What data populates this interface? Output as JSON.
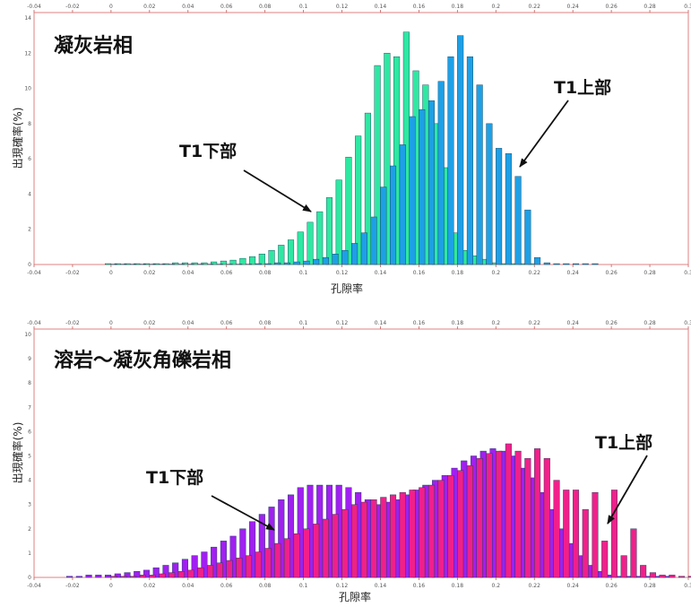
{
  "chart_data": [
    {
      "type": "bar",
      "title": "凝灰岩相",
      "xlabel": "孔隙率",
      "ylabel": "出現確率(%)",
      "xlim": [
        -0.04,
        0.3
      ],
      "ylim": [
        0,
        14
      ],
      "x_ticks": [
        "-0.04",
        "-0.02",
        "0",
        "0.02",
        "0.04",
        "0.06",
        "0.08",
        "0.1",
        "0.12",
        "0.14",
        "0.16",
        "0.18",
        "0.2",
        "0.22",
        "0.24",
        "0.26",
        "0.28",
        "0.3"
      ],
      "y_ticks": [
        "0",
        "2",
        "4",
        "6",
        "8",
        "10",
        "12",
        "14"
      ],
      "grid": false,
      "colors": {
        "T1下部": "#2ee8a2",
        "T1上部": "#1ea0e6",
        "frame": "#e08080"
      },
      "bin_width": 0.005,
      "series": [
        {
          "color": "#2ee8a2",
          "x": [
            0.0,
            0.005,
            0.01,
            0.015,
            0.02,
            0.025,
            0.03,
            0.035,
            0.04,
            0.045,
            0.05,
            0.055,
            0.06,
            0.065,
            0.07,
            0.075,
            0.08,
            0.085,
            0.09,
            0.095,
            0.1,
            0.105,
            0.11,
            0.115,
            0.12,
            0.125,
            0.13,
            0.135,
            0.14,
            0.145,
            0.15,
            0.155,
            0.16,
            0.165,
            0.17,
            0.175,
            0.18,
            0.185,
            0.19,
            0.195,
            0.2,
            0.205,
            0.21,
            0.215,
            0.22
          ],
          "values": [
            0.05,
            0.05,
            0.05,
            0.05,
            0.05,
            0.05,
            0.05,
            0.1,
            0.1,
            0.1,
            0.1,
            0.15,
            0.2,
            0.25,
            0.35,
            0.45,
            0.6,
            0.8,
            1.1,
            1.4,
            1.85,
            2.4,
            3.0,
            3.8,
            4.8,
            6.1,
            7.3,
            8.6,
            11.3,
            12.0,
            11.8,
            13.2,
            11.0,
            10.2,
            8.0,
            5.5,
            1.8,
            0.8,
            0.5,
            0.3,
            0.1,
            0.05,
            0.05,
            0.05,
            0.05
          ]
        },
        {
          "color": "#1ea0e6",
          "x": [
            0.0,
            0.005,
            0.01,
            0.015,
            0.02,
            0.025,
            0.03,
            0.035,
            0.04,
            0.045,
            0.05,
            0.055,
            0.06,
            0.065,
            0.07,
            0.075,
            0.08,
            0.085,
            0.09,
            0.095,
            0.1,
            0.105,
            0.11,
            0.115,
            0.12,
            0.125,
            0.13,
            0.135,
            0.14,
            0.145,
            0.15,
            0.155,
            0.16,
            0.165,
            0.17,
            0.175,
            0.18,
            0.185,
            0.19,
            0.195,
            0.2,
            0.205,
            0.21,
            0.215,
            0.22,
            0.225,
            0.23,
            0.235,
            0.24,
            0.245,
            0.25
          ],
          "values": [
            0.02,
            0.02,
            0.02,
            0.02,
            0.02,
            0.02,
            0.02,
            0.02,
            0.02,
            0.02,
            0.02,
            0.02,
            0.02,
            0.02,
            0.02,
            0.05,
            0.05,
            0.1,
            0.1,
            0.15,
            0.2,
            0.3,
            0.4,
            0.6,
            0.8,
            1.2,
            1.8,
            2.7,
            4.4,
            5.6,
            6.8,
            8.4,
            8.8,
            9.3,
            10.4,
            11.8,
            13.0,
            11.8,
            10.2,
            8.0,
            6.6,
            6.3,
            5.0,
            3.1,
            0.4,
            0.1,
            0.05,
            0.05,
            0.05,
            0.05,
            0.05
          ]
        }
      ],
      "annotations": [
        {
          "text": "T1下部",
          "points_to_x": 0.105,
          "points_to_y": 2.9
        },
        {
          "text": "T1上部",
          "points_to_x": 0.213,
          "points_to_y": 5.8
        }
      ]
    },
    {
      "type": "bar",
      "title": "溶岩～凝灰角礫岩相",
      "xlabel": "孔隙率",
      "ylabel": "出現確率(%)",
      "xlim": [
        -0.04,
        0.3
      ],
      "ylim": [
        0,
        10
      ],
      "x_ticks": [
        "-0.04",
        "-0.02",
        "0",
        "0.02",
        "0.04",
        "0.06",
        "0.08",
        "0.1",
        "0.12",
        "0.14",
        "0.16",
        "0.18",
        "0.2",
        "0.22",
        "0.24",
        "0.26",
        "0.28",
        "0.3"
      ],
      "y_ticks": [
        "0",
        "1",
        "2",
        "3",
        "4",
        "5",
        "6",
        "7",
        "8",
        "9",
        "10"
      ],
      "grid": false,
      "colors": {
        "T1下部": "#a020f0",
        "T1上部": "#f0208a",
        "frame": "#e08080"
      },
      "bin_width": 0.005,
      "series": [
        {
          "color": "#a020f0",
          "x": [
            -0.02,
            -0.015,
            -0.01,
            -0.005,
            0.0,
            0.005,
            0.01,
            0.015,
            0.02,
            0.025,
            0.03,
            0.035,
            0.04,
            0.045,
            0.05,
            0.055,
            0.06,
            0.065,
            0.07,
            0.075,
            0.08,
            0.085,
            0.09,
            0.095,
            0.1,
            0.105,
            0.11,
            0.115,
            0.12,
            0.125,
            0.13,
            0.135,
            0.14,
            0.145,
            0.15,
            0.155,
            0.16,
            0.165,
            0.17,
            0.175,
            0.18,
            0.185,
            0.19,
            0.195,
            0.2,
            0.205,
            0.21,
            0.215,
            0.22,
            0.225,
            0.23,
            0.235,
            0.24,
            0.245,
            0.25,
            0.255,
            0.26,
            0.265,
            0.27,
            0.275,
            0.28,
            0.285,
            0.29
          ],
          "values": [
            0.05,
            0.05,
            0.1,
            0.1,
            0.1,
            0.15,
            0.2,
            0.25,
            0.3,
            0.4,
            0.5,
            0.6,
            0.75,
            0.9,
            1.05,
            1.25,
            1.5,
            1.7,
            2.0,
            2.3,
            2.6,
            2.9,
            3.2,
            3.4,
            3.7,
            3.8,
            3.8,
            3.8,
            3.8,
            3.7,
            3.5,
            3.2,
            3.0,
            3.1,
            3.2,
            3.4,
            3.6,
            3.8,
            4.0,
            4.2,
            4.5,
            4.8,
            5.0,
            5.2,
            5.3,
            5.2,
            5.0,
            4.5,
            4.1,
            3.5,
            2.8,
            2.0,
            1.4,
            0.9,
            0.5,
            0.25,
            0.1,
            0.05,
            0.05,
            0.05,
            0.05,
            0.05,
            0.05
          ]
        },
        {
          "color": "#f0208a",
          "x": [
            0.0,
            0.005,
            0.01,
            0.015,
            0.02,
            0.025,
            0.03,
            0.035,
            0.04,
            0.045,
            0.05,
            0.055,
            0.06,
            0.065,
            0.07,
            0.075,
            0.08,
            0.085,
            0.09,
            0.095,
            0.1,
            0.105,
            0.11,
            0.115,
            0.12,
            0.125,
            0.13,
            0.135,
            0.14,
            0.145,
            0.15,
            0.155,
            0.16,
            0.165,
            0.17,
            0.175,
            0.18,
            0.185,
            0.19,
            0.195,
            0.2,
            0.205,
            0.21,
            0.215,
            0.22,
            0.225,
            0.23,
            0.235,
            0.24,
            0.245,
            0.25,
            0.255,
            0.26,
            0.265,
            0.27,
            0.275,
            0.28,
            0.285,
            0.29,
            0.295,
            0.3
          ],
          "values": [
            0.05,
            0.05,
            0.05,
            0.1,
            0.1,
            0.15,
            0.2,
            0.25,
            0.3,
            0.4,
            0.5,
            0.6,
            0.7,
            0.8,
            0.9,
            1.05,
            1.2,
            1.4,
            1.6,
            1.8,
            2.0,
            2.2,
            2.4,
            2.6,
            2.8,
            3.0,
            3.1,
            3.2,
            3.3,
            3.4,
            3.5,
            3.6,
            3.7,
            3.8,
            4.0,
            4.2,
            4.4,
            4.6,
            4.9,
            5.1,
            5.2,
            5.5,
            5.2,
            4.9,
            5.3,
            4.9,
            4.0,
            3.6,
            3.6,
            2.8,
            3.5,
            1.5,
            3.6,
            0.9,
            2.0,
            0.5,
            0.2,
            0.1,
            0.1,
            0.05,
            0.05
          ]
        }
      ],
      "annotations": [
        {
          "text": "T1下部",
          "points_to_x": 0.087,
          "points_to_y": 2.3
        },
        {
          "text": "T1上部",
          "points_to_x": 0.268,
          "points_to_y": 2.5
        }
      ]
    }
  ]
}
